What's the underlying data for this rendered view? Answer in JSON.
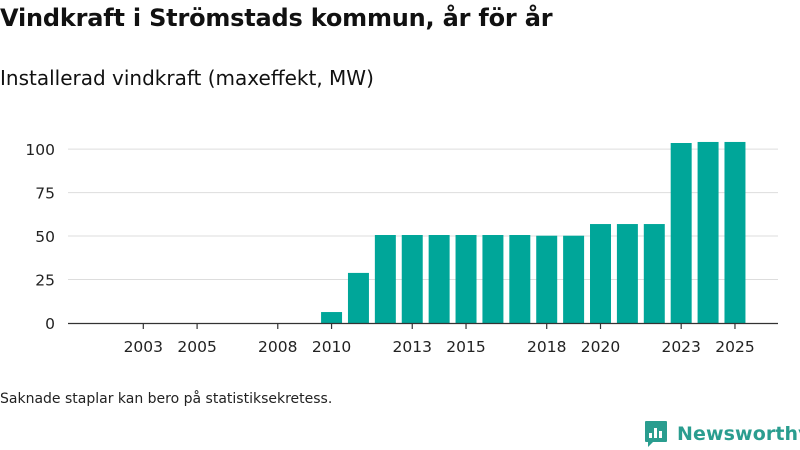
{
  "title": "Vindkraft i Strömstads kommun, år för år",
  "subtitle": "Installerad vindkraft (maxeffekt, MW)",
  "footnote": "Saknade staplar kan bero på statistiksekretess.",
  "brand": {
    "name": "Newsworthy",
    "icon": "newsworthy-logo-icon",
    "color": "#2a9d8f"
  },
  "colors": {
    "bar": "#00a699",
    "grid": "#dddddd",
    "axis": "#333333"
  },
  "chart_data": {
    "type": "bar",
    "title": "Vindkraft i Strömstads kommun, år för år",
    "subtitle": "Installerad vindkraft (maxeffekt, MW)",
    "xlabel": "",
    "ylabel": "",
    "x": [
      2010,
      2011,
      2012,
      2013,
      2014,
      2015,
      2016,
      2017,
      2018,
      2019,
      2020,
      2021,
      2022,
      2023,
      2024,
      2025
    ],
    "values": [
      6.3,
      28.8,
      50.6,
      50.6,
      50.6,
      50.6,
      50.6,
      50.6,
      50.2,
      50.2,
      56.9,
      56.9,
      56.9,
      103.5,
      104.1,
      104.1
    ],
    "xlim": [
      2000.2,
      2026.6
    ],
    "ylim": [
      0,
      115
    ],
    "yticks": [
      0,
      25,
      50,
      75,
      100
    ],
    "xticks": [
      2003,
      2005,
      2008,
      2010,
      2013,
      2015,
      2018,
      2020,
      2023,
      2025
    ],
    "grid": true,
    "legend": "none"
  }
}
